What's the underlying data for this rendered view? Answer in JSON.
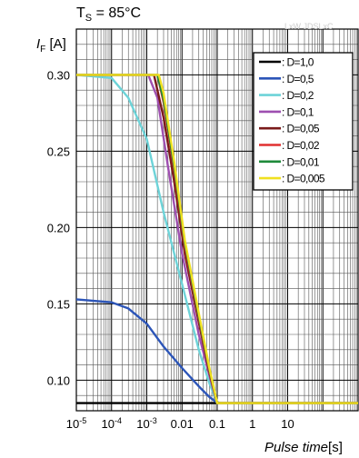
{
  "chart_data": {
    "type": "line",
    "title": "85°C",
    "title_prefix": "T",
    "title_sub": "S",
    "watermark": "LxW JDSLxC",
    "ylabel": {
      "symbol": "I",
      "sub": "F",
      "unit": "[A]"
    },
    "xlabel": {
      "name": "Pulse time",
      "unit": "[s]"
    },
    "x_scale": "log",
    "xlim": [
      1e-05,
      1000
    ],
    "ylim": [
      0.08,
      0.33
    ],
    "y_ticks": [
      0.1,
      0.15,
      0.2,
      0.25,
      0.3
    ],
    "y_tick_labels": [
      "0.10",
      "0.15",
      "0.20",
      "0.25",
      "0.30"
    ],
    "x_ticks": [
      {
        "value": 1e-05,
        "base": "10",
        "exp": "-5"
      },
      {
        "value": 0.0001,
        "base": "10",
        "exp": "-4"
      },
      {
        "value": 0.001,
        "base": "10",
        "exp": "-3"
      },
      {
        "value": 0.01,
        "label": "0.01"
      },
      {
        "value": 0.1,
        "label": "0.1"
      },
      {
        "value": 1,
        "label": "1"
      },
      {
        "value": 10,
        "label": "10"
      }
    ],
    "grid": true,
    "legend_position": "top-right",
    "series": [
      {
        "name": ": D=1,0",
        "color": "#000000",
        "x": [
          1e-05,
          1000
        ],
        "y": [
          0.085,
          0.085
        ]
      },
      {
        "name": ": D=0,5",
        "color": "#2c55b8",
        "x": [
          1e-05,
          0.0001,
          0.0003,
          0.001,
          0.003,
          0.01,
          0.03,
          0.06,
          0.09,
          0.12,
          1000
        ],
        "y": [
          0.153,
          0.151,
          0.147,
          0.137,
          0.122,
          0.108,
          0.096,
          0.089,
          0.086,
          0.085,
          0.085
        ]
      },
      {
        "name": ": D=0,2",
        "color": "#6dd3d8",
        "x": [
          1e-05,
          0.0001,
          0.0003,
          0.001,
          0.003,
          0.01,
          0.03,
          0.06,
          0.1,
          1000
        ],
        "y": [
          0.3,
          0.298,
          0.285,
          0.258,
          0.21,
          0.163,
          0.12,
          0.098,
          0.085,
          0.085
        ]
      },
      {
        "name": ": D=0,1",
        "color": "#9e4fb0",
        "x": [
          1e-05,
          0.0011,
          0.002,
          0.004,
          0.01,
          0.03,
          0.06,
          0.1,
          1000
        ],
        "y": [
          0.3,
          0.3,
          0.285,
          0.24,
          0.183,
          0.13,
          0.103,
          0.085,
          0.085
        ]
      },
      {
        "name": ": D=0,05",
        "color": "#7a1a1a",
        "x": [
          1e-05,
          0.0016,
          0.003,
          0.006,
          0.012,
          0.03,
          0.06,
          0.1,
          1000
        ],
        "y": [
          0.3,
          0.3,
          0.272,
          0.23,
          0.183,
          0.138,
          0.105,
          0.085,
          0.085
        ]
      },
      {
        "name": ": D=0,02",
        "color": "#e03030",
        "x": [
          1e-05,
          0.002,
          0.003,
          0.006,
          0.012,
          0.03,
          0.06,
          0.1,
          1000
        ],
        "y": [
          0.3,
          0.3,
          0.282,
          0.238,
          0.188,
          0.141,
          0.106,
          0.085,
          0.085
        ]
      },
      {
        "name": ": D=0,01",
        "color": "#1e8a3a",
        "x": [
          1e-05,
          0.002,
          0.003,
          0.006,
          0.012,
          0.03,
          0.06,
          0.1,
          1000
        ],
        "y": [
          0.3,
          0.3,
          0.284,
          0.24,
          0.19,
          0.142,
          0.107,
          0.085,
          0.085
        ]
      },
      {
        "name": ": D=0,005",
        "color": "#f0e020",
        "x": [
          1e-05,
          0.0022,
          0.003,
          0.006,
          0.012,
          0.03,
          0.06,
          0.1,
          1000
        ],
        "y": [
          0.3,
          0.3,
          0.288,
          0.243,
          0.192,
          0.144,
          0.108,
          0.085,
          0.085
        ]
      }
    ]
  }
}
